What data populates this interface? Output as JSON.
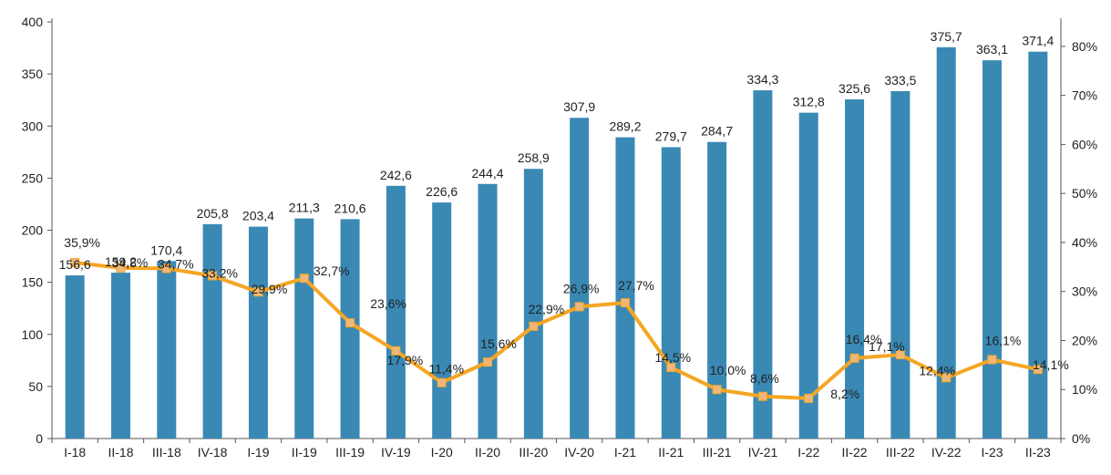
{
  "chart_data": {
    "type": "bar",
    "categories": [
      "I-18",
      "II-18",
      "III-18",
      "IV-18",
      "I-19",
      "II-19",
      "III-19",
      "IV-19",
      "I-20",
      "II-20",
      "III-20",
      "IV-20",
      "I-21",
      "II-21",
      "III-21",
      "IV-21",
      "I-22",
      "II-22",
      "III-22",
      "IV-22",
      "I-23",
      "II-23"
    ],
    "bar_values": [
      156.6,
      159.2,
      170.4,
      205.8,
      203.4,
      211.3,
      210.6,
      242.6,
      226.6,
      244.4,
      258.9,
      307.9,
      289.2,
      279.7,
      284.7,
      334.3,
      312.8,
      325.6,
      333.5,
      375.7,
      363.1,
      371.4
    ],
    "bar_labels": [
      "156,6",
      "159,2",
      "170,4",
      "205,8",
      "203,4",
      "211,3",
      "210,6",
      "242,6",
      "226,6",
      "244,4",
      "258,9",
      "307,9",
      "289,2",
      "279,7",
      "284,7",
      "334,3",
      "312,8",
      "325,6",
      "333,5",
      "375,7",
      "363,1",
      "371,4"
    ],
    "line_values": [
      35.9,
      34.8,
      34.7,
      33.2,
      29.9,
      32.7,
      23.6,
      17.9,
      11.4,
      15.6,
      22.9,
      26.9,
      27.7,
      14.5,
      10.0,
      8.6,
      8.2,
      16.4,
      17.1,
      12.4,
      16.1,
      14.1
    ],
    "line_labels": [
      "35,9%",
      "34,8%",
      "34,7%",
      "33,2%",
      "29,9%",
      "32,7%",
      "23,6%",
      "17,9%",
      "11,4%",
      "15,6%",
      "22,9%",
      "26,9%",
      "27,7%",
      "14,5%",
      "10,0%",
      "8,6%",
      "8,2%",
      "16,4%",
      "17,1%",
      "12,4%",
      "16,1%",
      "14,1%"
    ],
    "y_left": {
      "range": [
        0,
        400
      ],
      "ticks": [
        "0",
        "50",
        "100",
        "150",
        "200",
        "250",
        "300",
        "350",
        "400"
      ]
    },
    "y_right": {
      "range": [
        0,
        85
      ],
      "ticks": [
        "0%",
        "10%",
        "20%",
        "30%",
        "40%",
        "50%",
        "60%",
        "70%",
        "80%"
      ]
    },
    "colors": {
      "bar": "#3a89b5",
      "line": "#f5a623",
      "marker": "#f0b77a"
    },
    "grid": false,
    "legend": "none"
  }
}
